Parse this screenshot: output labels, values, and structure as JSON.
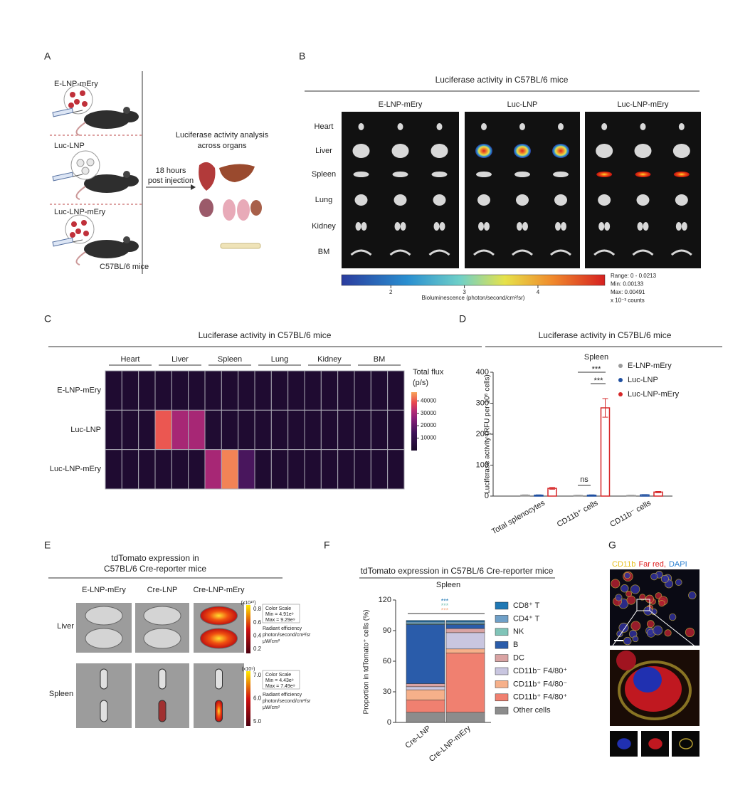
{
  "panel_labels": [
    "A",
    "B",
    "C",
    "D",
    "E",
    "F",
    "G"
  ],
  "panel_a": {
    "groups": [
      "E-LNP-mEry",
      "Luc-LNP",
      "Luc-LNP-mEry"
    ],
    "mice": "C57BL/6 mice",
    "arrow": [
      "18 hours",
      "post injection"
    ],
    "analysis": [
      "Luciferase activity analysis",
      "across organs"
    ]
  },
  "panel_b": {
    "title": "Luciferase activity in C57BL/6 mice",
    "groups": [
      "E-LNP-mEry",
      "Luc-LNP",
      "Luc-LNP-mEry"
    ],
    "organs": [
      "Heart",
      "Liver",
      "Spleen",
      "Lung",
      "Kidney",
      "BM"
    ],
    "colorbar": {
      "label": "Bioluminescence (photon/second/cm²/sr)",
      "clim": [
        1.33,
        4.91
      ],
      "ticks": [
        2,
        3,
        4
      ],
      "notes": [
        "Range: 0 - 0.0213",
        "Min: 0.00133",
        "Max: 0.00491",
        "x 10⁻³ counts"
      ]
    }
  },
  "panel_e": {
    "title": [
      "tdTomato expression in",
      "C57BL/6 Cre-reporter mice"
    ],
    "groups": [
      "E-LNP-mEry",
      "Cre-LNP",
      "Cre-LNP-mEry"
    ],
    "rows": [
      "Liver",
      "Spleen"
    ],
    "scales": [
      {
        "exponent": "(x10¹⁰)",
        "heading": "Color Scale",
        "min": "Min = 4.91e⁹",
        "max": "Max = 9.29e⁹",
        "ticks": [
          "0.8",
          "0.6",
          "0.4",
          "0.2"
        ],
        "units": [
          "Radiant efficiency",
          "photon/second/cm²/sr",
          "μW/cm²"
        ]
      },
      {
        "exponent": "(x10⁹)",
        "heading": "Color Scale",
        "min": "Min = 4.43e⁹",
        "max": "Max = 7.49e⁹",
        "ticks": [
          "7.0",
          "6.0",
          "5.0"
        ],
        "units": [
          "Radiant efficiency",
          "photon/second/cm²/sr",
          "μW/cm²"
        ]
      }
    ]
  },
  "panel_g": {
    "stains": [
      "CD11b",
      "Far red,",
      "DAPI"
    ],
    "colors": [
      "#e8c020",
      "#e02020",
      "#2a7fd0"
    ]
  },
  "chart_data": [
    {
      "type": "heatmap",
      "title": "Luciferase activity in C57BL/6 mice",
      "columns": [
        "Heart",
        "Liver",
        "Spleen",
        "Lung",
        "Kidney",
        "BM"
      ],
      "rows": [
        "E-LNP-mEry",
        "Luc-LNP",
        "Luc-LNP-mEry"
      ],
      "z": [
        [
          2000,
          2000,
          2000,
          2000,
          2000,
          2000,
          2000,
          2000,
          2000,
          2000,
          2000,
          2000,
          2000,
          2000,
          2000,
          2000,
          2000,
          2000
        ],
        [
          2000,
          2000,
          2000,
          40000,
          30000,
          30000,
          2500,
          2000,
          2000,
          2000,
          2000,
          2000,
          2000,
          2000,
          2000,
          2000,
          2000,
          2000
        ],
        [
          2000,
          2000,
          2000,
          2000,
          2000,
          2000,
          30000,
          44000,
          16000,
          2000,
          2000,
          2000,
          2000,
          2000,
          2000,
          2000,
          2000,
          2000
        ]
      ],
      "colorbar_label": [
        "Total flux",
        "(p/s)"
      ],
      "clim": [
        0,
        47000
      ],
      "cticks": [
        10000,
        20000,
        30000,
        40000
      ]
    },
    {
      "type": "bar",
      "title": "Luciferase activity in C57BL/6 mice",
      "subtitle": "Spleen",
      "ylabel": "Luciferase activity (RFU per 10⁶ cells)",
      "categories": [
        "Total splenocytes",
        "CD11b⁺ cells",
        "CD11b⁻ cells"
      ],
      "series": [
        {
          "name": "E-LNP-mEry",
          "color": "#9a9a9a",
          "values": [
            3,
            2,
            2
          ],
          "errors": [
            1,
            1,
            1
          ]
        },
        {
          "name": "Luc-LNP",
          "color": "#1f4fa0",
          "values": [
            3,
            3,
            4
          ],
          "errors": [
            1,
            1,
            1
          ]
        },
        {
          "name": "Luc-LNP-mEry",
          "color": "#d62728",
          "values": [
            25,
            285,
            13
          ],
          "errors": [
            3,
            30,
            2
          ]
        }
      ],
      "ylim": [
        0,
        400
      ],
      "yticks": [
        0,
        100,
        200,
        300,
        400
      ],
      "annotations": [
        "***",
        "***",
        "ns"
      ]
    },
    {
      "type": "stacked_bar",
      "title": "tdTomato expression in C57BL/6 Cre-reporter mice",
      "subtitle": "Spleen",
      "ylabel": "Proportion in tdTomato⁺ cells (%)",
      "categories": [
        "Cre-LNP",
        "Cre-LNP-mEry"
      ],
      "series": [
        {
          "name": "CD8⁺ T",
          "color": "#1f78b4",
          "values": [
            1.5,
            1.5
          ]
        },
        {
          "name": "CD4⁺ T",
          "color": "#6fa0c8",
          "values": [
            1.5,
            1.5
          ]
        },
        {
          "name": "NK",
          "color": "#80c4b8",
          "values": [
            1,
            1
          ]
        },
        {
          "name": "B",
          "color": "#2a5caa",
          "values": [
            58,
            4
          ]
        },
        {
          "name": "DC",
          "color": "#d9a3a3",
          "values": [
            3,
            4
          ]
        },
        {
          "name": "CD11b⁻ F4/80⁺",
          "color": "#c9c6e0",
          "values": [
            3,
            16
          ]
        },
        {
          "name": "CD11b⁺ F4/80⁻",
          "color": "#f6b08a",
          "values": [
            10,
            4
          ]
        },
        {
          "name": "CD11b⁺ F4/80⁺",
          "color": "#f08070",
          "values": [
            12,
            58
          ]
        },
        {
          "name": "Other cells",
          "color": "#8c8c8c",
          "values": [
            10,
            10
          ]
        }
      ],
      "ylim": [
        0,
        120
      ],
      "yticks": [
        0,
        30,
        60,
        90,
        120
      ],
      "annotations": [
        {
          "text": "***",
          "color": "#1f78b4"
        },
        {
          "text": "***",
          "color": "#80c4b8"
        },
        {
          "text": "***",
          "color": "#f6b08a"
        }
      ]
    }
  ]
}
